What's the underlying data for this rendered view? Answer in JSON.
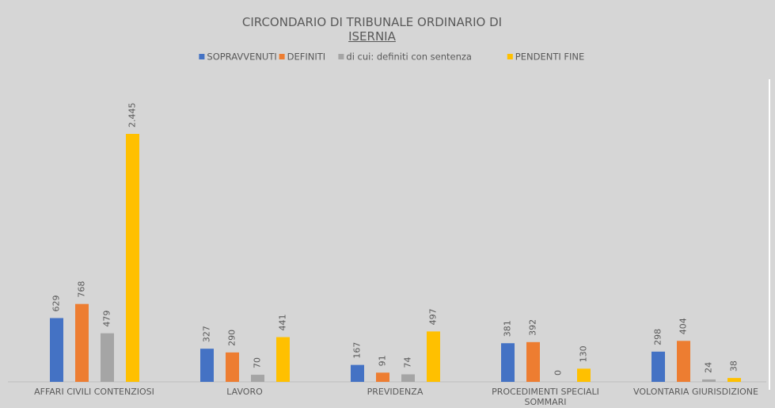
{
  "chart_data": {
    "type": "bar",
    "title": "CIRCONDARIO DI TRIBUNALE ORDINARIO DI",
    "subtitle": "ISERNIA",
    "categories": [
      "AFFARI CIVILI CONTENZIOSI",
      "LAVORO",
      "PREVIDENZA",
      "PROCEDIMENTI SPECIALI SOMMARI",
      "VOLONTARIA GIURISDIZIONE"
    ],
    "series": [
      {
        "name": "SOPRAVVENUTI",
        "color": "#4472c4",
        "values": [
          629,
          327,
          167,
          381,
          298
        ]
      },
      {
        "name": "DEFINITI",
        "color": "#ed7d31",
        "values": [
          768,
          290,
          91,
          392,
          404
        ]
      },
      {
        "name": "di cui: definiti con sentenza",
        "color": "#a5a5a5",
        "values": [
          479,
          70,
          74,
          0,
          24
        ]
      },
      {
        "name": "PENDENTI FINE",
        "color": "#ffc000",
        "values": [
          2445,
          441,
          497,
          130,
          38
        ],
        "value_labels": [
          "2.445",
          "441",
          "497",
          "130",
          "38"
        ]
      }
    ],
    "legend": "top"
  }
}
